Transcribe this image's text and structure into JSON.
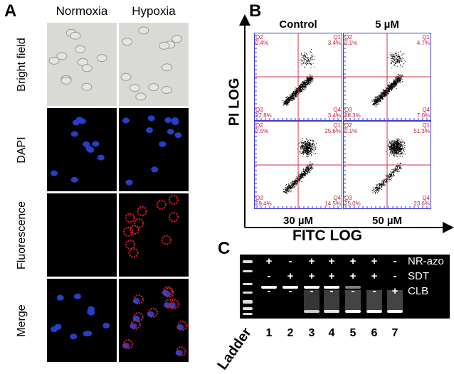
{
  "panel_a": {
    "label": "A",
    "columns": [
      "Normoxia",
      "Hypoxia"
    ],
    "rows": [
      "Bright field",
      "DAPI",
      "Fluorescence",
      "Merge"
    ]
  },
  "panel_b": {
    "label": "B",
    "y_axis": "PI LOG",
    "x_axis": "FITC LOG",
    "plots": [
      {
        "title": "Control",
        "q1": "3.4%",
        "q2": "0.4%",
        "q3": "92.8%",
        "q4": "3.4%"
      },
      {
        "title": "5 µM",
        "q1": "4.7%",
        "q2": "0.1%",
        "q3": "88.3%",
        "q4": "7.0%"
      },
      {
        "title": "30 µM",
        "q1": "25.6%",
        "q2": "0.5%",
        "q3": "59.4%",
        "q4": "14.5%"
      },
      {
        "title": "50 µM",
        "q1": "51.3%",
        "q2": "0.1%",
        "q3": "25.0%",
        "q4": "23.6%"
      }
    ],
    "quadrant_names": [
      "Q1",
      "Q2",
      "Q3",
      "Q4"
    ],
    "colors": {
      "frame": "#3b3bd6",
      "gate": "#d0304a",
      "text": "#c2203a"
    }
  },
  "panel_c": {
    "label": "C",
    "ladder": "Ladder",
    "conditions": [
      {
        "name": "NR-azo",
        "values": [
          "+",
          "-",
          "+",
          "+",
          "+",
          "+",
          "-"
        ]
      },
      {
        "name": "SDT",
        "values": [
          "-",
          "+",
          "+",
          "+",
          "+",
          "+",
          "-"
        ]
      },
      {
        "name": "CLB",
        "values": [
          "-",
          "-",
          "-",
          "-",
          "-",
          "-",
          "+"
        ]
      }
    ],
    "lanes": [
      "1",
      "2",
      "3",
      "4",
      "5",
      "6",
      "7"
    ]
  }
}
